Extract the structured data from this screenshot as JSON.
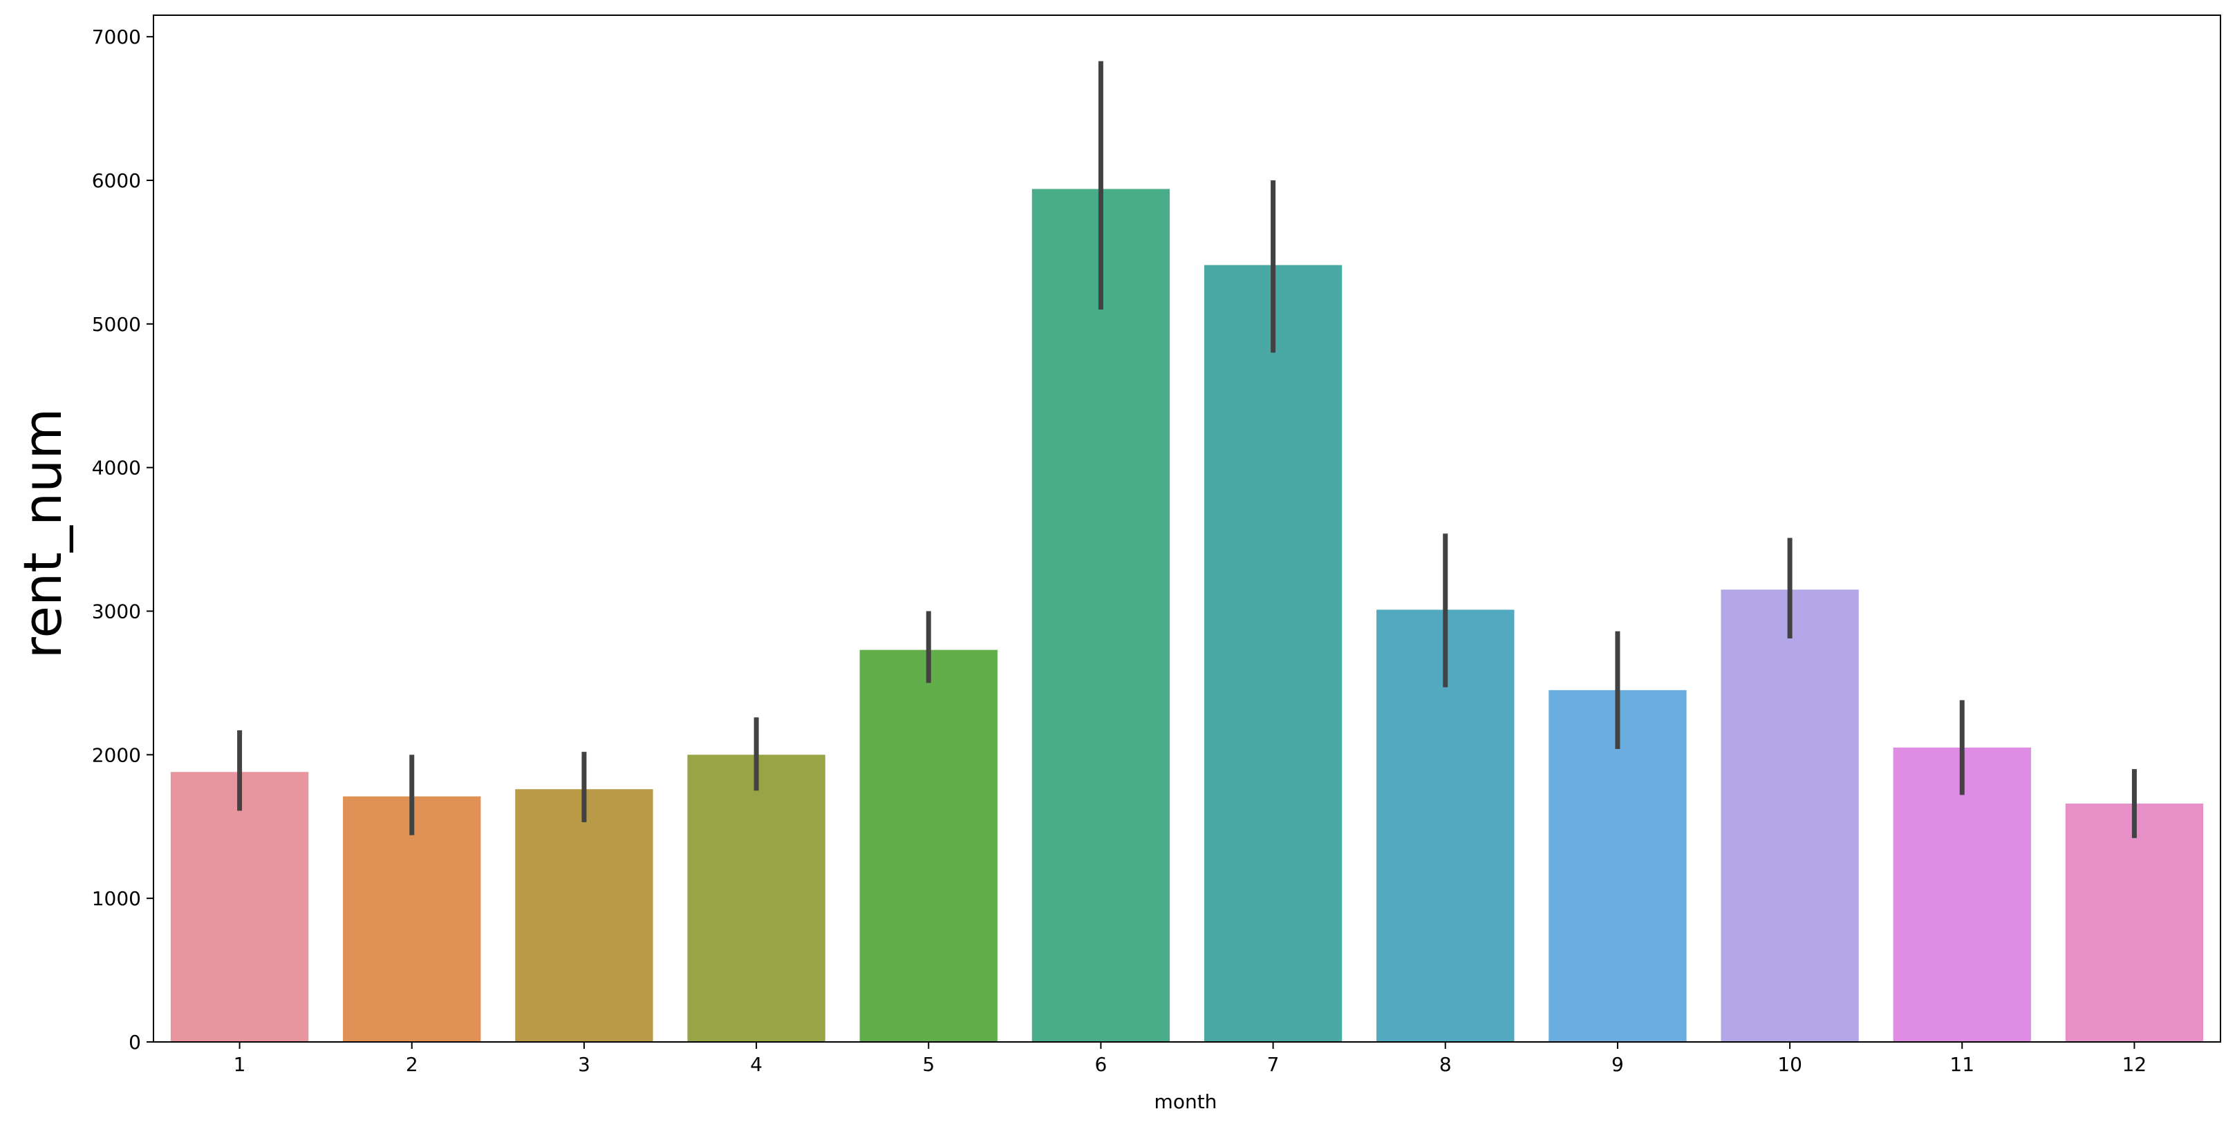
{
  "chart_data": {
    "type": "bar",
    "title": "",
    "xlabel": "month",
    "ylabel": "rent_num",
    "categories": [
      "1",
      "2",
      "3",
      "4",
      "5",
      "6",
      "7",
      "8",
      "9",
      "10",
      "11",
      "12"
    ],
    "values": [
      1880,
      1710,
      1760,
      2000,
      2730,
      5940,
      5410,
      3010,
      2450,
      3150,
      2050,
      1660
    ],
    "error_bars": [
      [
        1610,
        2170
      ],
      [
        1440,
        2000
      ],
      [
        1530,
        2020
      ],
      [
        1750,
        2260
      ],
      [
        2500,
        3000
      ],
      [
        5100,
        6830
      ],
      [
        4800,
        6000
      ],
      [
        2470,
        3540
      ],
      [
        2040,
        2860
      ],
      [
        2810,
        3510
      ],
      [
        1720,
        2380
      ],
      [
        1420,
        1900
      ]
    ],
    "ylim": [
      0,
      7150
    ],
    "yticks": [
      0,
      1000,
      2000,
      3000,
      4000,
      5000,
      6000,
      7000
    ],
    "grid": false,
    "legend": "none",
    "colors": [
      "#e8959f",
      "#e09155",
      "#b89a47",
      "#99a447",
      "#62ae4a",
      "#4aad89",
      "#4aa9a5",
      "#52a9c0",
      "#6badde",
      "#b4a7e8",
      "#df8ce5",
      "#e78fc7"
    ],
    "errorbar_color": "#424242"
  }
}
